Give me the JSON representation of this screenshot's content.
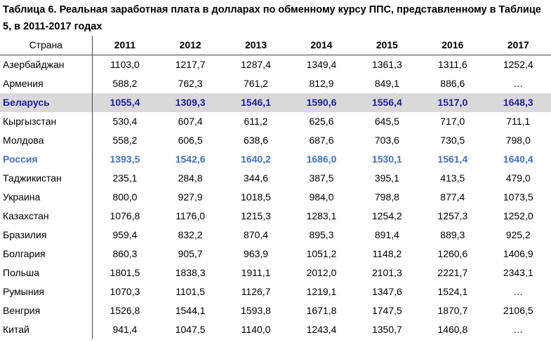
{
  "title": "Таблица 6. Реальная заработная плата в долларах по обменному курсу ППС, представленному в Таблице 5, в 2011-2017 годах",
  "table": {
    "country_header": "Страна",
    "years": [
      "2011",
      "2012",
      "2013",
      "2014",
      "2015",
      "2016",
      "2017"
    ],
    "rows": [
      {
        "country": "Азербайджан",
        "values": [
          "1103,0",
          "1217,7",
          "1287,4",
          "1349,4",
          "1361,3",
          "1311,6",
          "1252,4"
        ]
      },
      {
        "country": "Армения",
        "values": [
          "588,2",
          "762,3",
          "761,2",
          "812,9",
          "849,1",
          "886,6",
          "…"
        ]
      },
      {
        "country": "Беларусь",
        "values": [
          "1055,4",
          "1309,3",
          "1546,1",
          "1590,6",
          "1556,4",
          "1517,0",
          "1648,3"
        ],
        "highlight": "belarus"
      },
      {
        "country": "Кыргызстан",
        "values": [
          "530,4",
          "607,4",
          "611,2",
          "625,6",
          "645,5",
          "717,0",
          "711,1"
        ]
      },
      {
        "country": "Молдова",
        "values": [
          "558,2",
          "606,5",
          "638,6",
          "687,6",
          "703,6",
          "730,5",
          "798,0"
        ]
      },
      {
        "country": "Россия",
        "values": [
          "1393,5",
          "1542,6",
          "1640,2",
          "1686,0",
          "1530,1",
          "1561,4",
          "1640,4"
        ],
        "highlight": "russia"
      },
      {
        "country": "Таджикистан",
        "values": [
          "235,1",
          "284,8",
          "344,6",
          "387,5",
          "395,1",
          "413,5",
          "479,0"
        ]
      },
      {
        "country": "Украина",
        "values": [
          "800,0",
          "927,9",
          "1018,5",
          "984,0",
          "798,8",
          "877,4",
          "1073,5"
        ]
      },
      {
        "country": "Казахстан",
        "values": [
          "1076,8",
          "1176,0",
          "1215,3",
          "1283,1",
          "1254,2",
          "1257,3",
          "1252,0"
        ]
      },
      {
        "country": "Бразилия",
        "values": [
          "959,4",
          "832,2",
          "870,4",
          "895,3",
          "891,4",
          "889,3",
          "925,2"
        ]
      },
      {
        "country": "Болгария",
        "values": [
          "860,3",
          "905,7",
          "963,9",
          "1051,2",
          "1148,2",
          "1260,6",
          "1406,9"
        ]
      },
      {
        "country": "Польша",
        "values": [
          "1801,5",
          "1838,3",
          "1911,1",
          "2012,0",
          "2101,3",
          "2221,7",
          "2343,1"
        ]
      },
      {
        "country": "Румыния",
        "values": [
          "1070,3",
          "1101,5",
          "1126,7",
          "1219,1",
          "1347,6",
          "1524,1",
          "…"
        ]
      },
      {
        "country": "Венгрия",
        "values": [
          "1526,8",
          "1544,1",
          "1593,8",
          "1671,8",
          "1747,5",
          "1870,7",
          "2106,5"
        ]
      },
      {
        "country": "Китай",
        "values": [
          "941,4",
          "1047,5",
          "1140,0",
          "1243,4",
          "1350,7",
          "1460,8",
          "…"
        ]
      }
    ]
  }
}
